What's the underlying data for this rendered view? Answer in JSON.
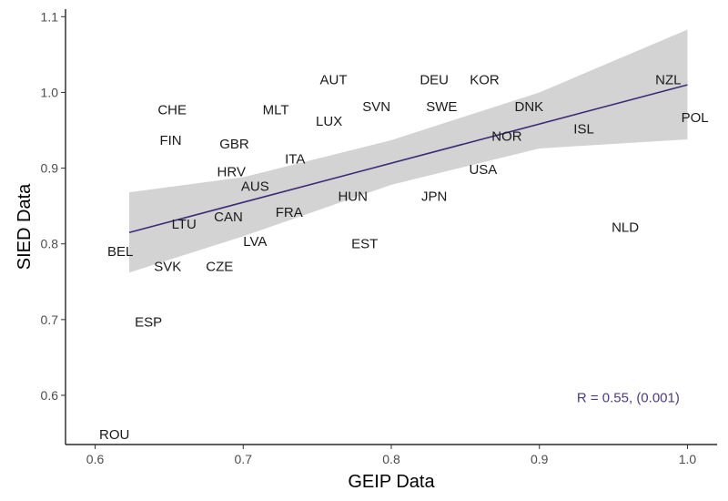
{
  "chart_data": {
    "type": "scatter",
    "xlabel": "GEIP Data",
    "ylabel": "SIED Data",
    "xlim": [
      0.58,
      1.02
    ],
    "ylim": [
      0.535,
      1.11
    ],
    "x_ticks": [
      0.6,
      0.7,
      0.8,
      0.9,
      1.0
    ],
    "y_ticks": [
      0.6,
      0.7,
      0.8,
      0.9,
      1.0,
      1.1
    ],
    "x_tick_labels": [
      "0.6",
      "0.7",
      "0.8",
      "0.9",
      "1.0"
    ],
    "y_tick_labels": [
      "0.6",
      "0.7",
      "0.8",
      "0.9",
      "1.0",
      "1.1"
    ],
    "grid": false,
    "points": [
      {
        "label": "ROU",
        "x": 0.613,
        "y": 0.548
      },
      {
        "label": "ESP",
        "x": 0.636,
        "y": 0.697
      },
      {
        "label": "BEL",
        "x": 0.617,
        "y": 0.79
      },
      {
        "label": "SVK",
        "x": 0.649,
        "y": 0.77
      },
      {
        "label": "CZE",
        "x": 0.684,
        "y": 0.77
      },
      {
        "label": "LTU",
        "x": 0.66,
        "y": 0.826
      },
      {
        "label": "CAN",
        "x": 0.69,
        "y": 0.836
      },
      {
        "label": "LVA",
        "x": 0.708,
        "y": 0.803
      },
      {
        "label": "FIN",
        "x": 0.651,
        "y": 0.937
      },
      {
        "label": "CHE",
        "x": 0.652,
        "y": 0.977
      },
      {
        "label": "GBR",
        "x": 0.694,
        "y": 0.932
      },
      {
        "label": "HRV",
        "x": 0.692,
        "y": 0.895
      },
      {
        "label": "AUS",
        "x": 0.708,
        "y": 0.876
      },
      {
        "label": "MLT",
        "x": 0.722,
        "y": 0.977
      },
      {
        "label": "ITA",
        "x": 0.735,
        "y": 0.912
      },
      {
        "label": "FRA",
        "x": 0.731,
        "y": 0.842
      },
      {
        "label": "AUT",
        "x": 0.761,
        "y": 1.017
      },
      {
        "label": "LUX",
        "x": 0.758,
        "y": 0.962
      },
      {
        "label": "HUN",
        "x": 0.774,
        "y": 0.863
      },
      {
        "label": "EST",
        "x": 0.782,
        "y": 0.8
      },
      {
        "label": "SVN",
        "x": 0.79,
        "y": 0.981
      },
      {
        "label": "DEU",
        "x": 0.829,
        "y": 1.017
      },
      {
        "label": "SWE",
        "x": 0.834,
        "y": 0.981
      },
      {
        "label": "JPN",
        "x": 0.829,
        "y": 0.863
      },
      {
        "label": "KOR",
        "x": 0.863,
        "y": 1.017
      },
      {
        "label": "USA",
        "x": 0.862,
        "y": 0.898
      },
      {
        "label": "DNK",
        "x": 0.893,
        "y": 0.981
      },
      {
        "label": "NOR",
        "x": 0.878,
        "y": 0.942
      },
      {
        "label": "ISL",
        "x": 0.93,
        "y": 0.952
      },
      {
        "label": "NLD",
        "x": 0.958,
        "y": 0.822
      },
      {
        "label": "NZL",
        "x": 0.987,
        "y": 1.017
      },
      {
        "label": "POL",
        "x": 1.005,
        "y": 0.967
      }
    ],
    "trend_line": {
      "x0": 0.623,
      "y0": 0.815,
      "x1": 1.0,
      "y1": 1.01,
      "color": "#3f2a78"
    },
    "confidence_band": {
      "x": [
        0.623,
        0.7,
        0.8,
        0.9,
        1.0
      ],
      "upper": [
        0.868,
        0.888,
        0.937,
        1.0,
        1.083
      ],
      "lower": [
        0.762,
        0.81,
        0.878,
        0.926,
        0.938
      ],
      "color": "#d3d3d3"
    },
    "annotation": {
      "text": "R = 0.55, (0.001)",
      "x": 0.96,
      "y": 0.597,
      "color": "#4b3b84"
    }
  }
}
